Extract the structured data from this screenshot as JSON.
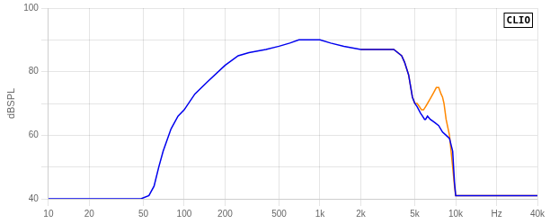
{
  "chart_data": {
    "type": "line",
    "ylabel": "dBSPL",
    "annotations": [
      "CLIO"
    ],
    "log": "x",
    "grid": true,
    "xlim": [
      10,
      40000
    ],
    "ylim": [
      40,
      100
    ],
    "xticks": [
      10,
      20,
      50,
      100,
      200,
      500,
      {
        "value": 1000,
        "label": "1k"
      },
      {
        "value": 2000,
        "label": "2k"
      },
      {
        "value": 5000,
        "label": "5k"
      },
      {
        "value": 10000,
        "label": "10k"
      },
      {
        "value": 20000,
        "label": "Hz"
      },
      {
        "value": 40000,
        "label": "40k"
      }
    ],
    "yticks": [
      40,
      {
        "value": 50,
        "label": null
      },
      60,
      {
        "value": 70,
        "label": null
      },
      80,
      {
        "value": 90,
        "label": null
      },
      100
    ],
    "series": [
      {
        "color": "#0000ee",
        "x": [
          10,
          20,
          30,
          40,
          48,
          55,
          60,
          65,
          70,
          80,
          90,
          100,
          120,
          150,
          200,
          250,
          300,
          400,
          500,
          600,
          700,
          800,
          900,
          1000,
          1200,
          1500,
          2000,
          2500,
          3000,
          3500,
          4000,
          4200,
          4500,
          4800,
          5000,
          5200,
          5500,
          5700,
          5900,
          6000,
          6200,
          6500,
          7000,
          7500,
          8000,
          8500,
          9000,
          9500,
          9800,
          10000,
          40000
        ],
        "values": [
          40,
          40,
          40,
          40,
          40,
          41,
          44,
          50,
          55,
          62,
          66,
          68,
          73,
          77,
          82,
          85,
          86,
          87,
          88,
          89,
          90,
          90,
          90,
          90,
          89,
          88,
          87,
          87,
          87,
          87,
          85,
          83,
          79,
          72,
          70,
          69,
          67,
          66,
          65,
          65,
          66,
          65,
          64,
          63,
          61,
          60,
          59,
          55,
          45,
          41,
          41
        ]
      },
      {
        "color": "#ff8800",
        "x": [
          2000,
          2500,
          3000,
          3500,
          4000,
          4200,
          4500,
          4800,
          5000,
          5200,
          5400,
          5600,
          5800,
          6000,
          6200,
          6400,
          6600,
          6800,
          7000,
          7200,
          7500,
          7800,
          8000,
          8200,
          8500,
          9000,
          9500,
          9800,
          10000,
          10200,
          40000
        ],
        "values": [
          87,
          87,
          87,
          87,
          85,
          83,
          79,
          72,
          70,
          70,
          69,
          68,
          68,
          69,
          70,
          71,
          72,
          73,
          74,
          75,
          75,
          73,
          72,
          70,
          65,
          60,
          50,
          44,
          41,
          41,
          41
        ]
      }
    ]
  }
}
